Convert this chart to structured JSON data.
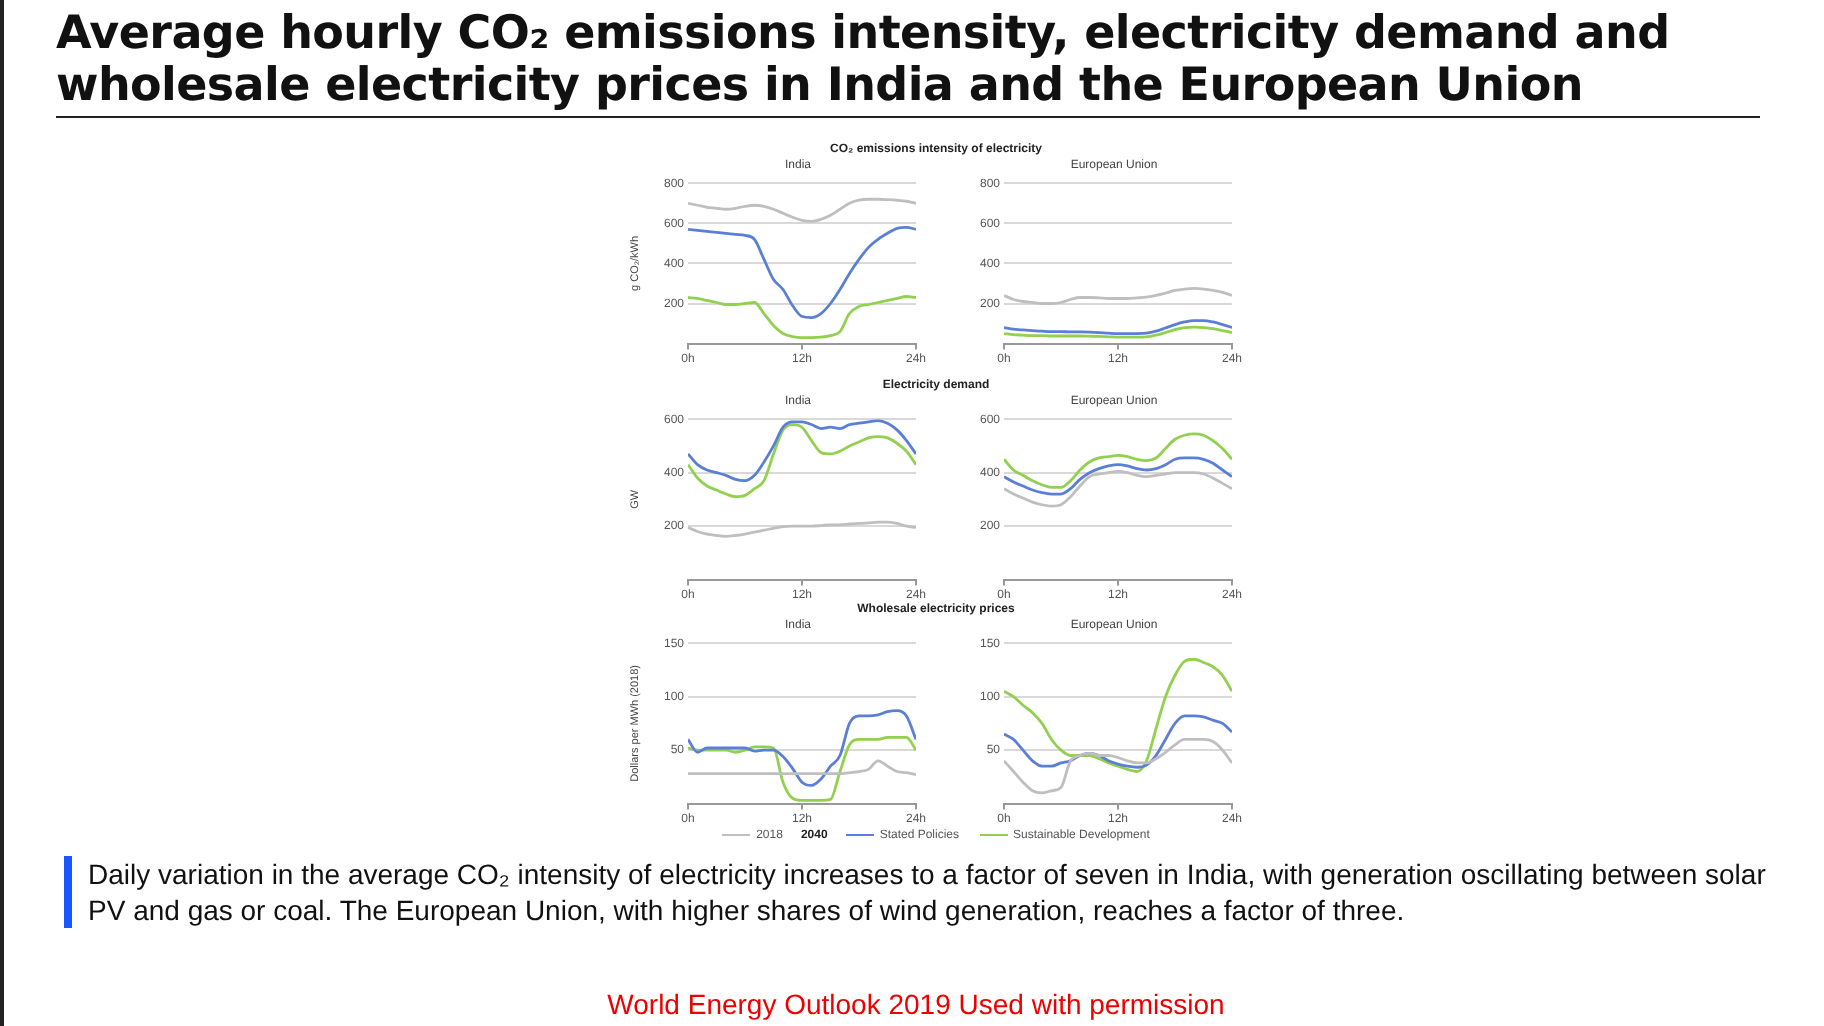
{
  "chart_data": [
    {
      "type": "other",
      "title": "Average hourly CO₂ emissions intensity, electricity demand and wholesale electricity prices in India and the European Union",
      "annotations": [
        "Daily variation in the average CO₂ intensity of electricity increases to a factor of seven in India, with generation oscillating between solar PV and gas or coal. The European Union, with higher shares of wind generation, reaches a factor of three.",
        "World Energy Outlook 2019 Used with permission"
      ]
    },
    {
      "type": "line",
      "title": "CO₂ emissions intensity of electricity",
      "subtitle": "India",
      "ylabel": "g CO₂/kWh",
      "x": [
        0,
        1,
        2,
        3,
        4,
        5,
        6,
        7,
        8,
        9,
        10,
        11,
        12,
        13,
        14,
        15,
        16,
        17,
        18,
        19,
        20,
        21,
        22,
        23,
        24
      ],
      "xlim": [
        0,
        24
      ],
      "xticks": [
        {
          "value": 0,
          "label": "0h"
        },
        {
          "value": 12,
          "label": "12h"
        },
        {
          "value": 24,
          "label": "24h"
        }
      ],
      "ylim": [
        0,
        800
      ],
      "yticks": [
        200,
        400,
        600,
        800
      ],
      "grid": "y",
      "series": [
        {
          "color": "#bfbfbf",
          "values": [
            700,
            690,
            680,
            675,
            670,
            675,
            685,
            690,
            685,
            670,
            650,
            630,
            615,
            610,
            620,
            640,
            670,
            700,
            715,
            720,
            720,
            718,
            715,
            710,
            700
          ]
        },
        {
          "color": "#5b7fd6",
          "values": [
            570,
            565,
            560,
            555,
            550,
            545,
            540,
            520,
            420,
            320,
            270,
            190,
            135,
            130,
            150,
            200,
            270,
            350,
            420,
            480,
            520,
            550,
            575,
            580,
            570
          ]
        },
        {
          "color": "#92d050",
          "values": [
            230,
            225,
            215,
            205,
            195,
            195,
            200,
            205,
            150,
            90,
            50,
            35,
            30,
            30,
            32,
            40,
            60,
            150,
            185,
            195,
            205,
            215,
            225,
            235,
            230
          ]
        }
      ]
    },
    {
      "type": "line",
      "subtitle": "European Union",
      "x": [
        0,
        1,
        2,
        3,
        4,
        5,
        6,
        7,
        8,
        9,
        10,
        11,
        12,
        13,
        14,
        15,
        16,
        17,
        18,
        19,
        20,
        21,
        22,
        23,
        24
      ],
      "xlim": [
        0,
        24
      ],
      "xticks": [
        {
          "value": 0,
          "label": "0h"
        },
        {
          "value": 12,
          "label": "12h"
        },
        {
          "value": 24,
          "label": "24h"
        }
      ],
      "ylim": [
        0,
        800
      ],
      "yticks": [
        200,
        400,
        600,
        800
      ],
      "grid": "y",
      "series": [
        {
          "color": "#bfbfbf",
          "values": [
            240,
            220,
            210,
            205,
            200,
            200,
            205,
            220,
            230,
            230,
            228,
            225,
            225,
            225,
            228,
            232,
            240,
            252,
            265,
            272,
            275,
            272,
            265,
            255,
            240
          ]
        },
        {
          "color": "#5b7fd6",
          "values": [
            80,
            72,
            68,
            65,
            62,
            60,
            60,
            58,
            58,
            57,
            55,
            52,
            50,
            50,
            50,
            52,
            62,
            78,
            95,
            108,
            115,
            115,
            108,
            95,
            80
          ]
        },
        {
          "color": "#92d050",
          "values": [
            50,
            45,
            42,
            40,
            40,
            38,
            38,
            38,
            38,
            37,
            36,
            34,
            32,
            32,
            32,
            34,
            42,
            55,
            70,
            80,
            82,
            80,
            75,
            65,
            55
          ]
        }
      ]
    },
    {
      "type": "line",
      "title": "Electricity demand",
      "subtitle": "India",
      "ylabel": "GW",
      "x": [
        0,
        1,
        2,
        3,
        4,
        5,
        6,
        7,
        8,
        9,
        10,
        11,
        12,
        13,
        14,
        15,
        16,
        17,
        18,
        19,
        20,
        21,
        22,
        23,
        24
      ],
      "xlim": [
        0,
        24
      ],
      "xticks": [
        {
          "value": 0,
          "label": "0h"
        },
        {
          "value": 12,
          "label": "12h"
        },
        {
          "value": 24,
          "label": "24h"
        }
      ],
      "ylim": [
        0,
        600
      ],
      "yticks": [
        200,
        400,
        600
      ],
      "grid": "y",
      "series": [
        {
          "color": "#bfbfbf",
          "values": [
            195,
            180,
            170,
            165,
            162,
            165,
            170,
            178,
            185,
            192,
            198,
            200,
            200,
            200,
            202,
            205,
            205,
            208,
            210,
            212,
            215,
            215,
            210,
            200,
            195
          ]
        },
        {
          "color": "#5b7fd6",
          "values": [
            470,
            430,
            410,
            400,
            390,
            375,
            370,
            390,
            440,
            500,
            570,
            590,
            590,
            580,
            565,
            570,
            565,
            580,
            585,
            590,
            595,
            585,
            560,
            520,
            470
          ]
        },
        {
          "color": "#92d050",
          "values": [
            430,
            380,
            350,
            335,
            320,
            310,
            315,
            340,
            370,
            470,
            560,
            580,
            570,
            520,
            475,
            470,
            480,
            500,
            515,
            530,
            535,
            530,
            510,
            480,
            430
          ]
        }
      ]
    },
    {
      "type": "line",
      "subtitle": "European Union",
      "x": [
        0,
        1,
        2,
        3,
        4,
        5,
        6,
        7,
        8,
        9,
        10,
        11,
        12,
        13,
        14,
        15,
        16,
        17,
        18,
        19,
        20,
        21,
        22,
        23,
        24
      ],
      "xlim": [
        0,
        24
      ],
      "xticks": [
        {
          "value": 0,
          "label": "0h"
        },
        {
          "value": 12,
          "label": "12h"
        },
        {
          "value": 24,
          "label": "24h"
        }
      ],
      "ylim": [
        0,
        600
      ],
      "yticks": [
        200,
        400,
        600
      ],
      "grid": "y",
      "series": [
        {
          "color": "#bfbfbf",
          "values": [
            340,
            320,
            305,
            290,
            280,
            275,
            280,
            310,
            350,
            385,
            395,
            400,
            405,
            400,
            390,
            385,
            390,
            395,
            400,
            400,
            400,
            395,
            380,
            360,
            340
          ]
        },
        {
          "color": "#5b7fd6",
          "values": [
            385,
            365,
            350,
            335,
            325,
            320,
            320,
            340,
            375,
            400,
            415,
            425,
            430,
            425,
            415,
            410,
            415,
            430,
            450,
            455,
            455,
            450,
            435,
            410,
            385
          ]
        },
        {
          "color": "#92d050",
          "values": [
            450,
            410,
            390,
            370,
            355,
            345,
            345,
            370,
            410,
            440,
            455,
            460,
            465,
            460,
            450,
            445,
            455,
            490,
            525,
            540,
            545,
            540,
            520,
            490,
            450
          ]
        }
      ]
    },
    {
      "type": "line",
      "title": "Wholesale electricity prices",
      "subtitle": "India",
      "ylabel": "Dollars per MWh (2018)",
      "x": [
        0,
        1,
        2,
        3,
        4,
        5,
        6,
        7,
        8,
        9,
        10,
        11,
        12,
        13,
        14,
        15,
        16,
        17,
        18,
        19,
        20,
        21,
        22,
        23,
        24
      ],
      "xlim": [
        0,
        24
      ],
      "xticks": [
        {
          "value": 0,
          "label": "0h"
        },
        {
          "value": 12,
          "label": "12h"
        },
        {
          "value": 24,
          "label": "24h"
        }
      ],
      "ylim": [
        0,
        150
      ],
      "yticks": [
        50,
        100,
        150
      ],
      "grid": "y",
      "legend": "bottom",
      "legend_title": "2040",
      "series": [
        {
          "name": "2018",
          "color": "#bfbfbf",
          "values": [
            28,
            28,
            28,
            28,
            28,
            28,
            28,
            28,
            28,
            28,
            28,
            28,
            28,
            28,
            28,
            28,
            28,
            29,
            30,
            32,
            40,
            35,
            30,
            29,
            27
          ]
        },
        {
          "name": "Stated Policies",
          "color": "#5b7fd6",
          "values": [
            60,
            48,
            52,
            52,
            52,
            52,
            52,
            49,
            50,
            50,
            44,
            33,
            20,
            17,
            23,
            35,
            45,
            75,
            82,
            82,
            83,
            86,
            87,
            82,
            60
          ]
        },
        {
          "name": "Sustainable Development",
          "color": "#92d050",
          "values": [
            52,
            50,
            50,
            50,
            50,
            48,
            50,
            53,
            53,
            52,
            20,
            5,
            3,
            3,
            3,
            4,
            30,
            55,
            60,
            60,
            60,
            62,
            62,
            62,
            50
          ]
        }
      ]
    },
    {
      "type": "line",
      "subtitle": "European Union",
      "x": [
        0,
        1,
        2,
        3,
        4,
        5,
        6,
        7,
        8,
        9,
        10,
        11,
        12,
        13,
        14,
        15,
        16,
        17,
        18,
        19,
        20,
        21,
        22,
        23,
        24
      ],
      "xlim": [
        0,
        24
      ],
      "xticks": [
        {
          "value": 0,
          "label": "0h"
        },
        {
          "value": 12,
          "label": "12h"
        },
        {
          "value": 24,
          "label": "24h"
        }
      ],
      "ylim": [
        0,
        150
      ],
      "yticks": [
        50,
        100,
        150
      ],
      "grid": "y",
      "series": [
        {
          "color": "#bfbfbf",
          "values": [
            40,
            30,
            20,
            12,
            10,
            12,
            15,
            40,
            45,
            47,
            45,
            45,
            43,
            40,
            38,
            38,
            42,
            48,
            55,
            60,
            60,
            60,
            58,
            50,
            38
          ]
        },
        {
          "color": "#5b7fd6",
          "values": [
            65,
            60,
            50,
            40,
            35,
            35,
            38,
            40,
            45,
            47,
            45,
            40,
            37,
            35,
            34,
            36,
            45,
            60,
            75,
            82,
            82,
            81,
            78,
            75,
            67
          ]
        },
        {
          "color": "#92d050",
          "values": [
            105,
            100,
            92,
            85,
            75,
            60,
            50,
            45,
            45,
            45,
            42,
            38,
            35,
            32,
            30,
            40,
            70,
            100,
            120,
            133,
            135,
            132,
            128,
            120,
            105
          ]
        }
      ]
    }
  ]
}
